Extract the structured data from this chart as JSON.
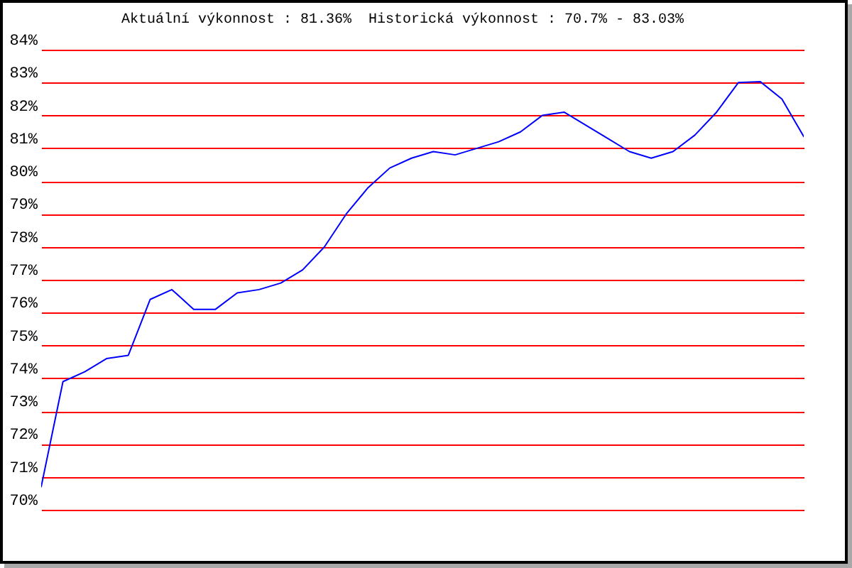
{
  "chart_data": {
    "type": "line",
    "title": "Aktuální výkonnost : 81.36%  Historická výkonnost : 70.7% - 83.03%",
    "categories": [
      null,
      null,
      null,
      null,
      null,
      null,
      null,
      null,
      null,
      null,
      null,
      null,
      null,
      null,
      null,
      null,
      null,
      null,
      null,
      null,
      null,
      null,
      null,
      null,
      null,
      null,
      null,
      null,
      null,
      null,
      null,
      null,
      null,
      null,
      null,
      null
    ],
    "series": [
      {
        "color": "#0000ff",
        "values": [
          70.7,
          73.9,
          74.2,
          74.6,
          74.7,
          76.4,
          76.7,
          76.1,
          76.1,
          76.6,
          76.7,
          76.9,
          77.3,
          78.0,
          79.0,
          79.8,
          80.4,
          80.7,
          80.9,
          80.8,
          81.0,
          81.2,
          81.5,
          82.0,
          82.1,
          81.7,
          81.3,
          80.9,
          80.7,
          80.9,
          81.4,
          82.1,
          83.0,
          83.03,
          82.5,
          81.36
        ]
      }
    ],
    "ylim": [
      70,
      84
    ],
    "yticks": [
      {
        "value": 70,
        "label": "70%"
      },
      {
        "value": 71,
        "label": "71%"
      },
      {
        "value": 72,
        "label": "72%"
      },
      {
        "value": 73,
        "label": "73%"
      },
      {
        "value": 74,
        "label": "74%"
      },
      {
        "value": 75,
        "label": "75%"
      },
      {
        "value": 76,
        "label": "76%"
      },
      {
        "value": 77,
        "label": "77%"
      },
      {
        "value": 78,
        "label": "78%"
      },
      {
        "value": 79,
        "label": "79%"
      },
      {
        "value": 80,
        "label": "80%"
      },
      {
        "value": 81,
        "label": "81%"
      },
      {
        "value": 82,
        "label": "82%"
      },
      {
        "value": 83,
        "label": "83%"
      },
      {
        "value": 84,
        "label": "84%"
      }
    ],
    "grid": "y",
    "tick_labels": "y",
    "line_style": "solid"
  }
}
